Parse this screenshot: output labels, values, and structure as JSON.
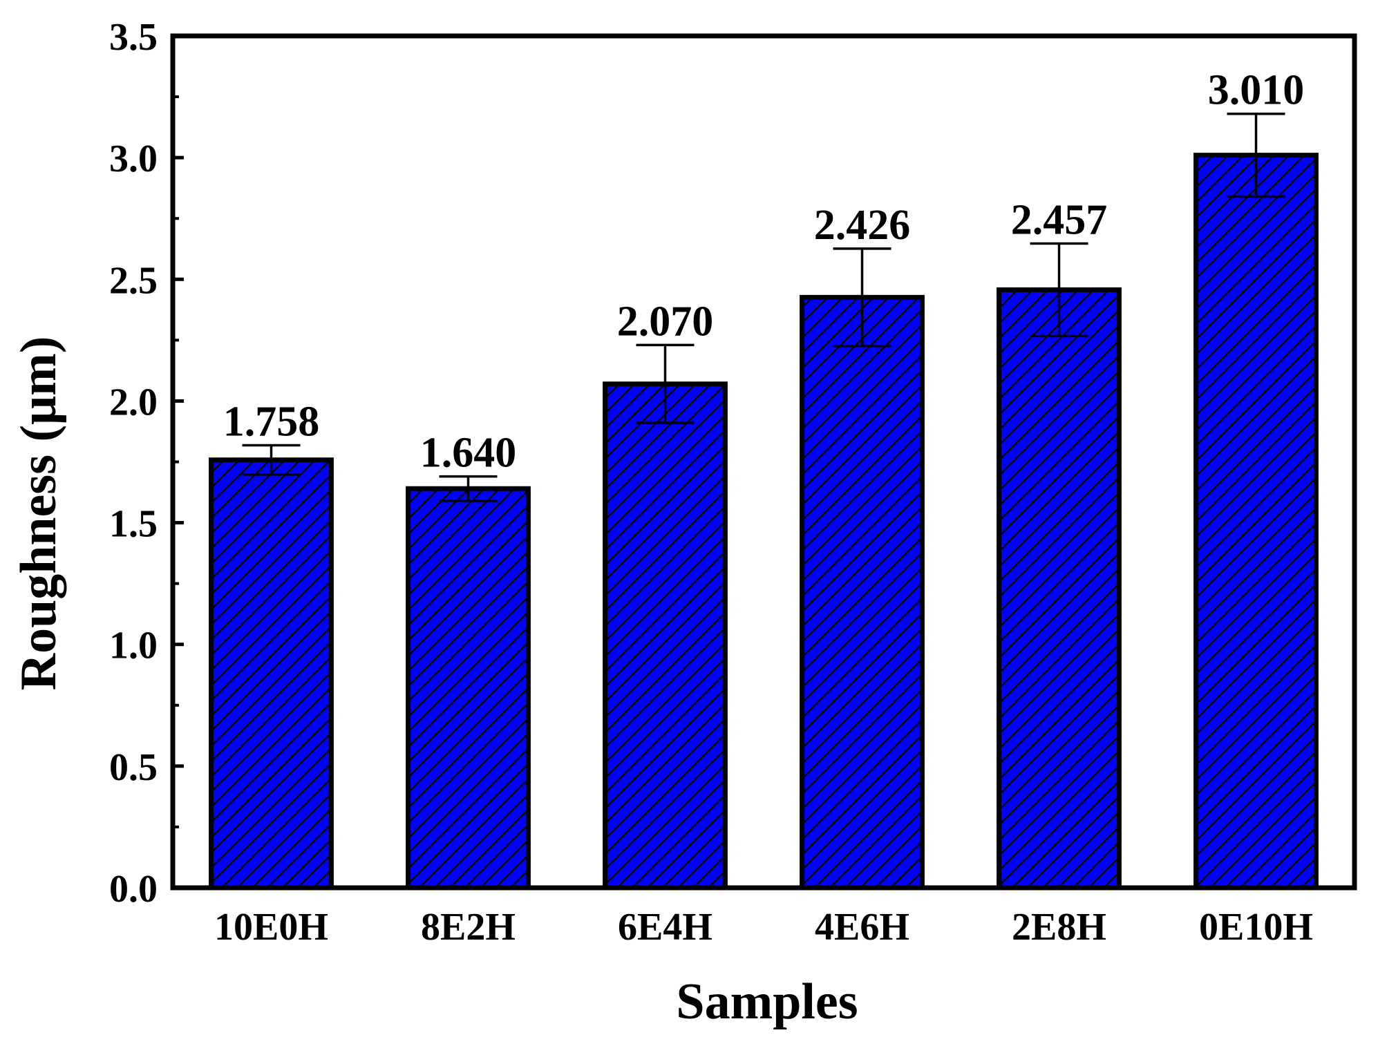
{
  "chart_data": {
    "type": "bar",
    "xlabel": "Samples",
    "ylabel": "Roughness (μm)",
    "categories": [
      "10E0H",
      "8E2H",
      "6E4H",
      "4E6H",
      "2E8H",
      "0E10H"
    ],
    "values": [
      1.758,
      1.64,
      2.07,
      2.426,
      2.457,
      3.01
    ],
    "value_labels": [
      "1.758",
      "1.640",
      "2.070",
      "2.426",
      "2.457",
      "3.010"
    ],
    "errors": [
      0.06,
      0.05,
      0.16,
      0.2,
      0.19,
      0.17
    ],
    "ylim": [
      0,
      3.5
    ],
    "yticks": [
      "0.0",
      "0.5",
      "1.0",
      "1.5",
      "2.0",
      "2.5",
      "3.0",
      "3.5"
    ],
    "grid": false,
    "bar_color": "#0000ff",
    "bar_pattern": "diagonal-hatch"
  }
}
